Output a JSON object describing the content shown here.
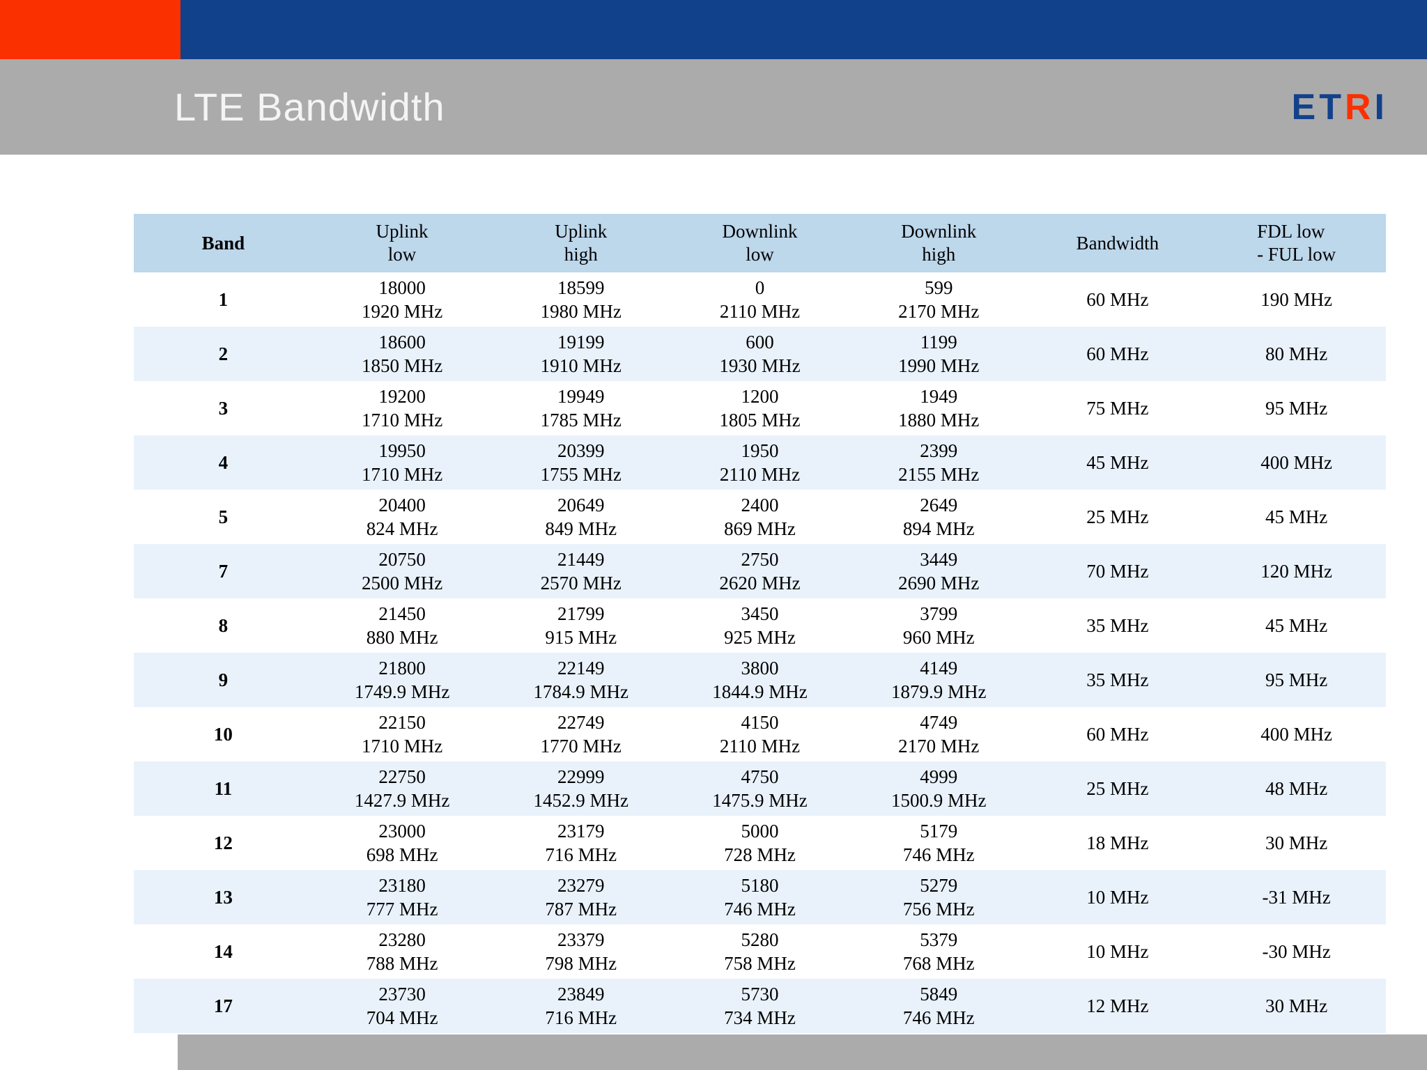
{
  "slide": {
    "title": "LTE Bandwidth",
    "logo": {
      "segments": [
        {
          "text": "ET",
          "color": "#12418C"
        },
        {
          "text": "R",
          "color": "#FA3000"
        },
        {
          "text": "I",
          "color": "#12418C"
        }
      ]
    }
  },
  "colors": {
    "accent_orange": "#FA3000",
    "accent_blue": "#12418C",
    "band_gray": "#ABABAB",
    "table_header_blue": "#BDD7EB",
    "row_tint_blue": "#E9F2FB"
  },
  "table": {
    "columns": [
      {
        "lines": [
          "Band"
        ],
        "bold": true
      },
      {
        "lines": [
          "Uplink",
          "low"
        ]
      },
      {
        "lines": [
          "Uplink",
          "high"
        ]
      },
      {
        "lines": [
          "Downlink",
          "low"
        ]
      },
      {
        "lines": [
          "Downlink",
          "high"
        ]
      },
      {
        "lines": [
          "Bandwidth"
        ]
      },
      {
        "lines": [
          "FDL low",
          "- FUL low"
        ],
        "align": "left"
      }
    ],
    "rows": [
      {
        "band": "1",
        "cells": [
          [
            "18000",
            "1920 MHz"
          ],
          [
            "18599",
            "1980 MHz"
          ],
          [
            "0",
            "2110 MHz"
          ],
          [
            "599",
            "2170 MHz"
          ],
          [
            "60 MHz"
          ],
          [
            "190 MHz"
          ]
        ]
      },
      {
        "band": "2",
        "cells": [
          [
            "18600",
            "1850 MHz"
          ],
          [
            "19199",
            "1910 MHz"
          ],
          [
            "600",
            "1930 MHz"
          ],
          [
            "1199",
            "1990 MHz"
          ],
          [
            "60 MHz"
          ],
          [
            "80 MHz"
          ]
        ]
      },
      {
        "band": "3",
        "cells": [
          [
            "19200",
            "1710 MHz"
          ],
          [
            "19949",
            "1785 MHz"
          ],
          [
            "1200",
            "1805 MHz"
          ],
          [
            "1949",
            "1880 MHz"
          ],
          [
            "75 MHz"
          ],
          [
            "95 MHz"
          ]
        ]
      },
      {
        "band": "4",
        "cells": [
          [
            "19950",
            "1710 MHz"
          ],
          [
            "20399",
            "1755 MHz"
          ],
          [
            "1950",
            "2110 MHz"
          ],
          [
            "2399",
            "2155 MHz"
          ],
          [
            "45 MHz"
          ],
          [
            "400 MHz"
          ]
        ]
      },
      {
        "band": "5",
        "cells": [
          [
            "20400",
            "824 MHz"
          ],
          [
            "20649",
            "849 MHz"
          ],
          [
            "2400",
            "869 MHz"
          ],
          [
            "2649",
            "894 MHz"
          ],
          [
            "25 MHz"
          ],
          [
            "45 MHz"
          ]
        ]
      },
      {
        "band": "7",
        "cells": [
          [
            "20750",
            "2500 MHz"
          ],
          [
            "21449",
            "2570 MHz"
          ],
          [
            "2750",
            "2620 MHz"
          ],
          [
            "3449",
            "2690 MHz"
          ],
          [
            "70 MHz"
          ],
          [
            "120 MHz"
          ]
        ]
      },
      {
        "band": "8",
        "cells": [
          [
            "21450",
            "880 MHz"
          ],
          [
            "21799",
            "915 MHz"
          ],
          [
            "3450",
            "925 MHz"
          ],
          [
            "3799",
            "960 MHz"
          ],
          [
            "35 MHz"
          ],
          [
            "45 MHz"
          ]
        ]
      },
      {
        "band": "9",
        "cells": [
          [
            "21800",
            "1749.9 MHz"
          ],
          [
            "22149",
            "1784.9 MHz"
          ],
          [
            "3800",
            "1844.9 MHz"
          ],
          [
            "4149",
            "1879.9 MHz"
          ],
          [
            "35 MHz"
          ],
          [
            "95 MHz"
          ]
        ]
      },
      {
        "band": "10",
        "cells": [
          [
            "22150",
            "1710 MHz"
          ],
          [
            "22749",
            "1770 MHz"
          ],
          [
            "4150",
            "2110 MHz"
          ],
          [
            "4749",
            "2170 MHz"
          ],
          [
            "60 MHz"
          ],
          [
            "400 MHz"
          ]
        ]
      },
      {
        "band": "11",
        "cells": [
          [
            "22750",
            "1427.9 MHz"
          ],
          [
            "22999",
            "1452.9 MHz"
          ],
          [
            "4750",
            "1475.9 MHz"
          ],
          [
            "4999",
            "1500.9 MHz"
          ],
          [
            "25 MHz"
          ],
          [
            "48 MHz"
          ]
        ]
      },
      {
        "band": "12",
        "cells": [
          [
            "23000",
            "698 MHz"
          ],
          [
            "23179",
            "716 MHz"
          ],
          [
            "5000",
            "728 MHz"
          ],
          [
            "5179",
            "746 MHz"
          ],
          [
            "18 MHz"
          ],
          [
            "30 MHz"
          ]
        ]
      },
      {
        "band": "13",
        "cells": [
          [
            "23180",
            "777 MHz"
          ],
          [
            "23279",
            "787 MHz"
          ],
          [
            "5180",
            "746 MHz"
          ],
          [
            "5279",
            "756 MHz"
          ],
          [
            "10 MHz"
          ],
          [
            "-31 MHz"
          ]
        ]
      },
      {
        "band": "14",
        "cells": [
          [
            "23280",
            "788 MHz"
          ],
          [
            "23379",
            "798 MHz"
          ],
          [
            "5280",
            "758 MHz"
          ],
          [
            "5379",
            "768 MHz"
          ],
          [
            "10 MHz"
          ],
          [
            "-30 MHz"
          ]
        ]
      },
      {
        "band": "17",
        "cells": [
          [
            "23730",
            "704 MHz"
          ],
          [
            "23849",
            "716 MHz"
          ],
          [
            "5730",
            "734 MHz"
          ],
          [
            "5849",
            "746 MHz"
          ],
          [
            "12 MHz"
          ],
          [
            "30 MHz"
          ]
        ]
      }
    ]
  }
}
